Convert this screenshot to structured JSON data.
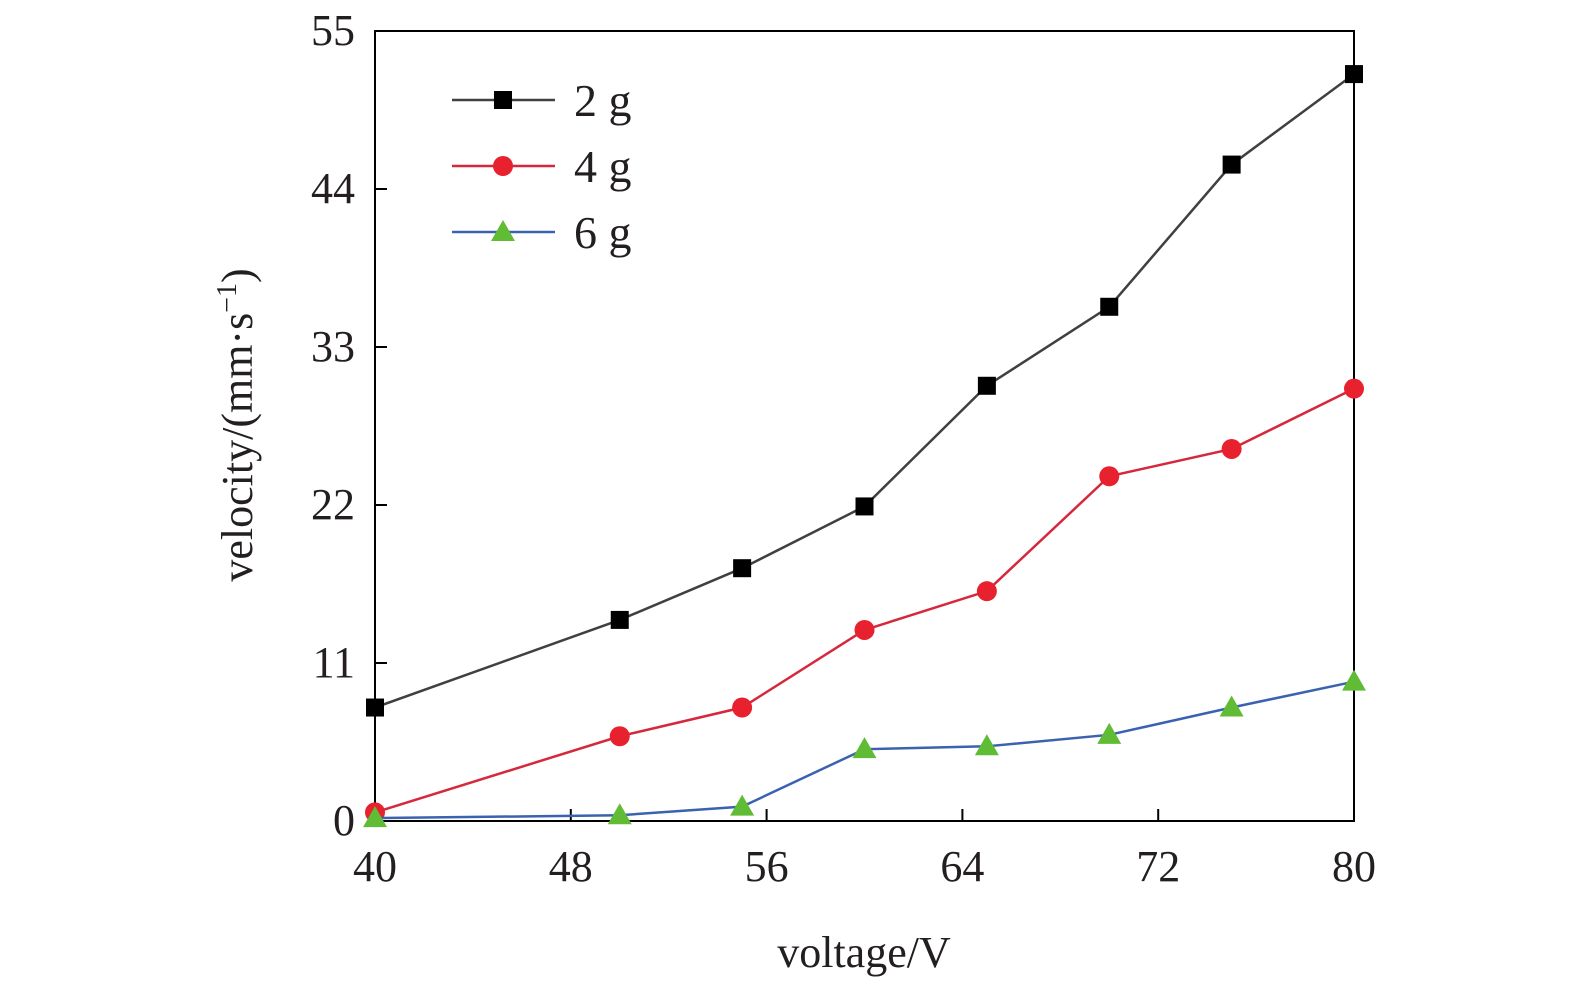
{
  "chart_data": {
    "type": "line",
    "xlabel": "voltage/V",
    "ylabel": "velocity/(mm·s",
    "ylabel_sup": "−1",
    "ylabel_close": ")",
    "xlim": [
      40,
      80
    ],
    "ylim": [
      0,
      55
    ],
    "xticks": [
      40,
      48,
      56,
      64,
      72,
      80
    ],
    "yticks": [
      0,
      11,
      22,
      33,
      44,
      55
    ],
    "x": [
      40,
      50,
      55,
      60,
      65,
      70,
      75,
      80
    ],
    "grid": false,
    "legend_position": "top-left",
    "series": [
      {
        "name": "2 g",
        "color": "#404040",
        "marker": "square",
        "marker_color": "#000000",
        "values": [
          7.9,
          14.0,
          17.6,
          21.9,
          30.3,
          35.8,
          45.7,
          52.0
        ]
      },
      {
        "name": "4 g",
        "color": "#d6283c",
        "marker": "circle",
        "marker_color": "#e8212f",
        "values": [
          0.6,
          5.9,
          7.9,
          13.3,
          16.0,
          24.0,
          25.9,
          30.1
        ]
      },
      {
        "name": "6 g",
        "color": "#3a62b0",
        "marker": "triangle",
        "marker_color": "#61bc35",
        "values": [
          0.2,
          0.4,
          1.0,
          5.0,
          5.2,
          6.0,
          7.9,
          9.7
        ]
      }
    ]
  }
}
